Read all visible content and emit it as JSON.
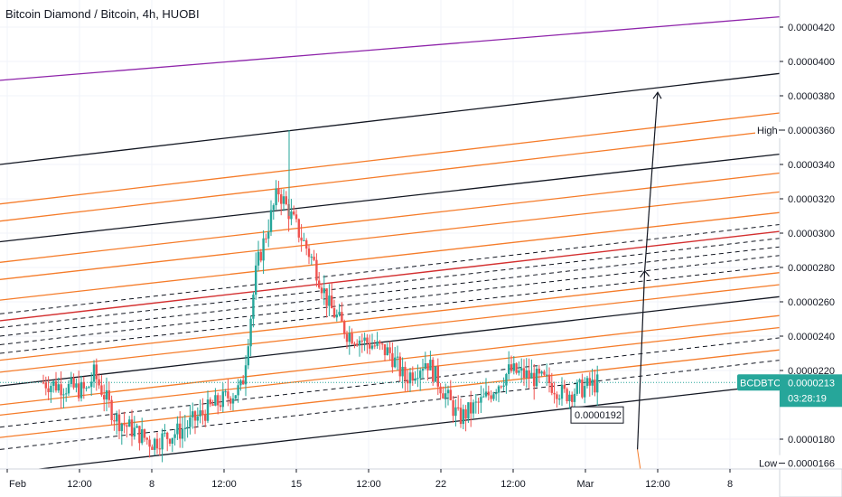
{
  "header": {
    "title": "Bitcoin Diamond / Bitcoin, 4h, HUOBI"
  },
  "price_axis": {
    "ticks": [
      "0.0000420",
      "0.0000400",
      "0.0000380",
      "0.0000340",
      "0.0000320",
      "0.0000300",
      "0.0000280",
      "0.0000260",
      "0.0000240",
      "0.0000220",
      "0.0000180"
    ]
  },
  "time_axis": {
    "labels": [
      "Feb",
      "12:00",
      "8",
      "12:00",
      "15",
      "12:00",
      "22",
      "12:00",
      "Mar",
      "12:00",
      "8"
    ]
  },
  "markers": {
    "high_label": "High",
    "high_value": "0.0000360",
    "low_label": "Low",
    "low_value": "0.0000166",
    "symbol": "BCDBTC",
    "symbol_price": "0.0000213",
    "countdown": "03:28:19",
    "price_note": "0.0000192"
  },
  "colors": {
    "candle_up": "#26a69a",
    "candle_down": "#ef5350",
    "orange_line": "#f57c2a",
    "black_line": "#131722",
    "red_line": "#d32f2f",
    "purple_line": "#8e24aa",
    "symbol_badge": "#26a69a"
  },
  "chart_data": {
    "type": "candlestick",
    "title": "Bitcoin Diamond / Bitcoin, 4h, HUOBI",
    "x_labels": [
      "Feb",
      "12:00",
      "8",
      "12:00",
      "15",
      "12:00",
      "22",
      "12:00",
      "Mar",
      "12:00",
      "8"
    ],
    "y_ticks": [
      "0.0000420",
      "0.0000400",
      "0.0000380",
      "0.0000340",
      "0.0000320",
      "0.0000300",
      "0.0000280",
      "0.0000260",
      "0.0000240",
      "0.0000220",
      "0.0000180"
    ],
    "high": 3.6e-05,
    "low": 1.66e-05,
    "last_price": 2.13e-05,
    "note_price": 1.92e-05,
    "close_path": [
      {
        "x": 0.5,
        "y": 2.13e-05
      },
      {
        "x": 1.1,
        "y": 2.08e-05
      },
      {
        "x": 1.2,
        "y": 2.18e-05
      },
      {
        "x": 1.5,
        "y": 1.92e-05
      },
      {
        "x": 2.0,
        "y": 1.78e-05
      },
      {
        "x": 2.4,
        "y": 1.85e-05
      },
      {
        "x": 2.8,
        "y": 1.98e-05
      },
      {
        "x": 3.25,
        "y": 2.1e-05
      },
      {
        "x": 3.45,
        "y": 2.8e-05
      },
      {
        "x": 3.75,
        "y": 3.25e-05
      },
      {
        "x": 4.25,
        "y": 2.82e-05
      },
      {
        "x": 4.45,
        "y": 2.58e-05
      },
      {
        "x": 4.7,
        "y": 2.42e-05
      },
      {
        "x": 5.3,
        "y": 2.3e-05
      },
      {
        "x": 5.5,
        "y": 2.15e-05
      },
      {
        "x": 5.8,
        "y": 2.26e-05
      },
      {
        "x": 6.25,
        "y": 1.92e-05
      },
      {
        "x": 6.6,
        "y": 2.03e-05
      },
      {
        "x": 6.95,
        "y": 2.2e-05
      },
      {
        "x": 7.5,
        "y": 2.13e-05
      },
      {
        "x": 7.7,
        "y": 2.06e-05
      },
      {
        "x": 8.2,
        "y": 2.13e-05
      }
    ],
    "channel_lines": [
      {
        "style": "purple",
        "y_start": 3.89e-05,
        "y_end": 4.26e-05
      },
      {
        "style": "black",
        "y_start": 3.4e-05,
        "y_end": 3.93e-05
      },
      {
        "style": "orange",
        "y_start": 3.17e-05,
        "y_end": 3.7e-05
      },
      {
        "style": "orange",
        "y_start": 3.07e-05,
        "y_end": 3.6e-05
      },
      {
        "style": "black",
        "y_start": 2.95e-05,
        "y_end": 3.46e-05
      },
      {
        "style": "orange",
        "y_start": 2.83e-05,
        "y_end": 3.35e-05
      },
      {
        "style": "orange",
        "y_start": 2.73e-05,
        "y_end": 3.24e-05
      },
      {
        "style": "orange",
        "y_start": 2.61e-05,
        "y_end": 3.12e-05
      },
      {
        "style": "black-dashed",
        "y_start": 2.53e-05,
        "y_end": 3.05e-05
      },
      {
        "style": "red",
        "y_start": 2.49e-05,
        "y_end": 3.01e-05
      },
      {
        "style": "black-dashed",
        "y_start": 2.45e-05,
        "y_end": 2.97e-05
      },
      {
        "style": "black-dashed",
        "y_start": 2.4e-05,
        "y_end": 2.92e-05
      },
      {
        "style": "black-dashed",
        "y_start": 2.35e-05,
        "y_end": 2.87e-05
      },
      {
        "style": "black-dashed",
        "y_start": 2.3e-05,
        "y_end": 2.81e-05
      },
      {
        "style": "orange",
        "y_start": 2.26e-05,
        "y_end": 2.77e-05
      },
      {
        "style": "orange",
        "y_start": 2.19e-05,
        "y_end": 2.7e-05
      },
      {
        "style": "black",
        "y_start": 2.11e-05,
        "y_end": 2.63e-05
      },
      {
        "style": "orange",
        "y_start": 2e-05,
        "y_end": 2.52e-05
      },
      {
        "style": "orange",
        "y_start": 1.94e-05,
        "y_end": 2.45e-05
      },
      {
        "style": "black-dashed",
        "y_start": 1.87e-05,
        "y_end": 2.39e-05
      },
      {
        "style": "orange",
        "y_start": 1.81e-05,
        "y_end": 2.32e-05
      },
      {
        "style": "black-dashed",
        "y_start": 1.74e-05,
        "y_end": 2.26e-05
      },
      {
        "style": "black",
        "y_start": 1.6e-05,
        "y_end": 2.12e-05
      }
    ]
  }
}
